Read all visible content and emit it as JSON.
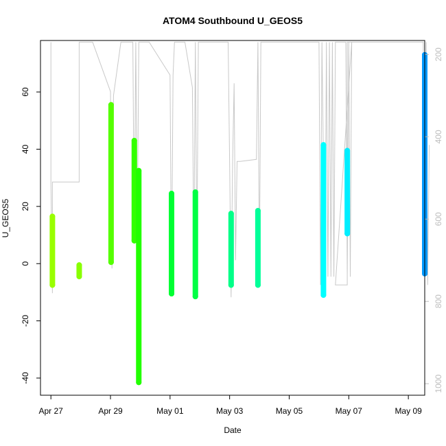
{
  "chart_data": {
    "type": "scatter",
    "title": "ATOM4 Southbound U_GEOS5",
    "xlabel": "Date",
    "ylabel": "U_GEOS5",
    "xlim": [
      -0.35,
      12.55
    ],
    "ylim": [
      -46,
      78
    ],
    "x_unit": "days from Apr 27",
    "x_ticks": [
      {
        "v": 0,
        "label": "Apr 27"
      },
      {
        "v": 2,
        "label": "Apr 29"
      },
      {
        "v": 4,
        "label": "May 01"
      },
      {
        "v": 6,
        "label": "May 03"
      },
      {
        "v": 8,
        "label": "May 05"
      },
      {
        "v": 10,
        "label": "May 07"
      },
      {
        "v": 12,
        "label": "May 09"
      }
    ],
    "y_ticks": [
      {
        "v": -40,
        "label": "-40"
      },
      {
        "v": -20,
        "label": "-20"
      },
      {
        "v": 0,
        "label": "0"
      },
      {
        "v": 20,
        "label": "20"
      },
      {
        "v": 40,
        "label": "40"
      },
      {
        "v": 60,
        "label": "60"
      }
    ],
    "y2_axis": {
      "lim": [
        1028,
        166
      ],
      "color": "#bdbdbd",
      "ticks": [
        {
          "v": 200,
          "label": "200"
        },
        {
          "v": 400,
          "label": "400"
        },
        {
          "v": 600,
          "label": "600"
        },
        {
          "v": 800,
          "label": "800"
        },
        {
          "v": 1000,
          "label": "1000"
        }
      ]
    },
    "pressure_trace": {
      "color": "#c8c8c8",
      "points": [
        [
          0.0,
          170
        ],
        [
          0.0,
          510
        ],
        [
          0.05,
          780
        ],
        [
          0.05,
          510
        ],
        [
          0.95,
          510
        ],
        [
          0.95,
          170
        ],
        [
          1.4,
          170
        ],
        [
          2.0,
          290
        ],
        [
          2.05,
          720
        ],
        [
          2.1,
          300
        ],
        [
          2.35,
          170
        ],
        [
          2.75,
          170
        ],
        [
          2.8,
          640
        ],
        [
          2.85,
          170
        ],
        [
          2.9,
          640
        ],
        [
          2.95,
          170
        ],
        [
          3.05,
          170
        ],
        [
          3.3,
          170
        ],
        [
          4.0,
          250
        ],
        [
          4.05,
          750
        ],
        [
          4.1,
          250
        ],
        [
          4.15,
          170
        ],
        [
          4.5,
          170
        ],
        [
          4.75,
          280
        ],
        [
          4.8,
          700
        ],
        [
          4.85,
          170
        ],
        [
          4.9,
          700
        ],
        [
          4.95,
          170
        ],
        [
          5.95,
          170
        ],
        [
          6.0,
          470
        ],
        [
          6.05,
          790
        ],
        [
          6.1,
          460
        ],
        [
          6.15,
          270
        ],
        [
          6.2,
          700
        ],
        [
          6.25,
          460
        ],
        [
          6.35,
          460
        ],
        [
          6.9,
          455
        ],
        [
          6.95,
          170
        ],
        [
          7.0,
          720
        ],
        [
          7.05,
          170
        ],
        [
          9.0,
          170
        ],
        [
          9.05,
          760
        ],
        [
          9.1,
          170
        ],
        [
          9.2,
          760
        ],
        [
          9.25,
          170
        ],
        [
          9.3,
          740
        ],
        [
          9.35,
          170
        ],
        [
          9.4,
          740
        ],
        [
          9.45,
          170
        ],
        [
          9.5,
          740
        ],
        [
          9.55,
          170
        ],
        [
          9.9,
          170
        ],
        [
          9.95,
          740
        ],
        [
          10.0,
          170
        ],
        [
          10.05,
          740
        ],
        [
          10.1,
          170
        ],
        [
          9.55,
          760
        ],
        [
          9.95,
          760
        ],
        [
          9.95,
          170
        ],
        [
          12.5,
          170
        ],
        [
          12.55,
          740
        ],
        [
          12.6,
          170
        ],
        [
          12.65,
          760
        ],
        [
          12.7,
          420
        ]
      ]
    },
    "series": [
      {
        "color": "#99ff00",
        "x": 0.05,
        "ymin": -7.5,
        "ymax": 16.5
      },
      {
        "color": "#88ff00",
        "x": 0.95,
        "ymin": -4.5,
        "ymax": -0.5
      },
      {
        "color": "#55ff00",
        "x": 2.02,
        "ymin": 0.5,
        "ymax": 55.5
      },
      {
        "color": "#33ff00",
        "x": 2.8,
        "ymin": 8,
        "ymax": 43
      },
      {
        "color": "#22ff00",
        "x": 2.95,
        "ymin": -41.5,
        "ymax": 32.5
      },
      {
        "color": "#00ff33",
        "x": 4.05,
        "ymin": -10.5,
        "ymax": 24.5
      },
      {
        "color": "#00ff44",
        "x": 4.85,
        "ymin": -11.5,
        "ymax": 25
      },
      {
        "color": "#00ff88",
        "x": 6.05,
        "ymin": -7.5,
        "ymax": 17.5
      },
      {
        "color": "#00ff99",
        "x": 6.95,
        "ymin": -7.5,
        "ymax": 18.5
      },
      {
        "color": "#00ffff",
        "x": 9.15,
        "ymin": -11,
        "ymax": 41.5
      },
      {
        "color": "#00eeff",
        "x": 9.95,
        "ymin": 10.5,
        "ymax": 39.5
      },
      {
        "color": "#0099ff",
        "x": 12.55,
        "ymin": -3.5,
        "ymax": 73
      }
    ]
  }
}
